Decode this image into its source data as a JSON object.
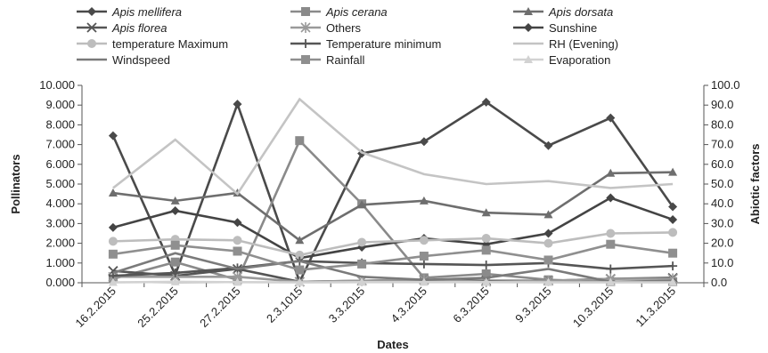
{
  "chart_data": {
    "type": "line",
    "categories": [
      "16.2.2015",
      "25.2.2015",
      "27.2.2015",
      "2.3.1015",
      "3.3.2015",
      "4.3.2015",
      "6.3.2015",
      "9.3.2015",
      "10.3.2015",
      "11.3.2015"
    ],
    "xlabel": "Dates",
    "ylabel": "Pollinators",
    "y2label": "Abiotic factors",
    "ylim": [
      0,
      10
    ],
    "y2lim": [
      0,
      100
    ],
    "y_ticks": [
      "0.000",
      "1.000",
      "2.000",
      "3.000",
      "4.000",
      "5.000",
      "6.000",
      "7.000",
      "8.000",
      "9.000",
      "10.000"
    ],
    "y2_ticks": [
      "0.0",
      "10.0",
      "20.0",
      "30.0",
      "40.0",
      "50.0",
      "60.0",
      "70.0",
      "80.0",
      "90.0",
      "100.0"
    ],
    "grid": false,
    "legend_position": "top",
    "series": [
      {
        "name": "Apis mellifera",
        "italic": true,
        "axis": "left",
        "color": "#4a4a4a",
        "marker": "diamond",
        "values": [
          7.45,
          0.4,
          9.05,
          0.05,
          6.55,
          7.15,
          9.15,
          6.95,
          8.35,
          3.85
        ]
      },
      {
        "name": "Apis cerana",
        "italic": true,
        "axis": "left",
        "color": "#8a8a8a",
        "marker": "square",
        "values": [
          0.2,
          1.05,
          0.15,
          7.2,
          4.0,
          0.25,
          0.45,
          0.15,
          0.05,
          0.05
        ]
      },
      {
        "name": "Apis dorsata",
        "italic": true,
        "axis": "left",
        "color": "#6e6e6e",
        "marker": "triangle",
        "values": [
          4.55,
          4.15,
          4.55,
          2.15,
          3.95,
          4.15,
          3.55,
          3.45,
          5.55,
          5.6
        ]
      },
      {
        "name": "Apis florea",
        "italic": true,
        "axis": "left",
        "color": "#555555",
        "marker": "x",
        "values": [
          0.6,
          0.35,
          0.7,
          0.05,
          0.1,
          0.15,
          0.1,
          0.1,
          0.2,
          0.25
        ]
      },
      {
        "name": "Others",
        "italic": false,
        "axis": "left",
        "color": "#9a9a9a",
        "marker": "asterisk",
        "values": [
          0.3,
          0.3,
          0.3,
          0.05,
          0.1,
          0.15,
          0.05,
          0.1,
          0.2,
          0.2
        ]
      },
      {
        "name": "Sunshine",
        "italic": false,
        "axis": "right",
        "color": "#444444",
        "marker": "diamond",
        "values": [
          28.0,
          36.5,
          30.5,
          12.5,
          18.0,
          22.5,
          19.5,
          25.0,
          43.0,
          32.0
        ]
      },
      {
        "name": "temperature Maximum",
        "italic": false,
        "axis": "right",
        "color": "#bdbdbd",
        "marker": "circle",
        "values": [
          21.0,
          22.0,
          21.5,
          14.0,
          20.5,
          21.5,
          22.5,
          20.0,
          25.0,
          25.5
        ]
      },
      {
        "name": "Temperature minimum",
        "italic": false,
        "axis": "right",
        "color": "#555555",
        "marker": "plus",
        "values": [
          3.5,
          5.0,
          7.5,
          11.0,
          10.0,
          9.5,
          9.0,
          10.0,
          7.0,
          8.5
        ]
      },
      {
        "name": "RH (Evening)",
        "italic": false,
        "axis": "right",
        "color": "#c4c4c4",
        "marker": "none",
        "values": [
          48.0,
          72.5,
          45.0,
          93.0,
          66.0,
          55.0,
          50.0,
          51.5,
          48.0,
          50.0
        ]
      },
      {
        "name": "Windspeed",
        "italic": false,
        "axis": "right",
        "color": "#7a7a7a",
        "marker": "none",
        "values": [
          5.0,
          15.0,
          7.0,
          11.0,
          3.0,
          1.5,
          2.5,
          7.0,
          0.5,
          1.0
        ]
      },
      {
        "name": "Rainfall",
        "italic": false,
        "axis": "right",
        "color": "#8f8f8f",
        "marker": "square",
        "values": [
          14.5,
          19.0,
          16.0,
          6.5,
          9.5,
          13.5,
          16.5,
          11.5,
          19.5,
          15.0
        ]
      },
      {
        "name": "Evaporation",
        "italic": false,
        "axis": "right",
        "color": "#d2d2d2",
        "marker": "triangle",
        "values": [
          0.2,
          0.5,
          0.3,
          0.2,
          0.3,
          0.3,
          0.3,
          0.2,
          0.2,
          0.2
        ]
      }
    ]
  }
}
